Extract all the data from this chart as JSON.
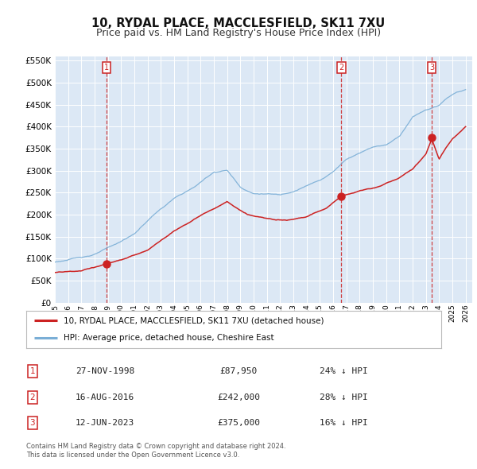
{
  "title": "10, RYDAL PLACE, MACCLESFIELD, SK11 7XU",
  "subtitle": "Price paid vs. HM Land Registry's House Price Index (HPI)",
  "ylim": [
    0,
    560000
  ],
  "xlim_start": 1995.0,
  "xlim_end": 2026.5,
  "yticks": [
    0,
    50000,
    100000,
    150000,
    200000,
    250000,
    300000,
    350000,
    400000,
    450000,
    500000,
    550000
  ],
  "ytick_labels": [
    "£0",
    "£50K",
    "£100K",
    "£150K",
    "£200K",
    "£250K",
    "£300K",
    "£350K",
    "£400K",
    "£450K",
    "£500K",
    "£550K"
  ],
  "xticks": [
    1995,
    1996,
    1997,
    1998,
    1999,
    2000,
    2001,
    2002,
    2003,
    2004,
    2005,
    2006,
    2007,
    2008,
    2009,
    2010,
    2011,
    2012,
    2013,
    2014,
    2015,
    2016,
    2017,
    2018,
    2019,
    2020,
    2021,
    2022,
    2023,
    2024,
    2025,
    2026
  ],
  "fig_bg_color": "#ffffff",
  "plot_bg_color": "#dce8f5",
  "grid_color": "#ffffff",
  "hpi_color": "#7aaed6",
  "price_color": "#cc2222",
  "marker_color": "#cc2222",
  "vline_color": "#cc2222",
  "sale_dates": [
    1998.9,
    2016.62,
    2023.45
  ],
  "sale_prices": [
    87950,
    242000,
    375000
  ],
  "sale_labels": [
    "1",
    "2",
    "3"
  ],
  "legend_price_label": "10, RYDAL PLACE, MACCLESFIELD, SK11 7XU (detached house)",
  "legend_hpi_label": "HPI: Average price, detached house, Cheshire East",
  "table_data": [
    [
      "1",
      "27-NOV-1998",
      "£87,950",
      "24% ↓ HPI"
    ],
    [
      "2",
      "16-AUG-2016",
      "£242,000",
      "28% ↓ HPI"
    ],
    [
      "3",
      "12-JUN-2023",
      "£375,000",
      "16% ↓ HPI"
    ]
  ],
  "footer_line1": "Contains HM Land Registry data © Crown copyright and database right 2024.",
  "footer_line2": "This data is licensed under the Open Government Licence v3.0.",
  "title_fontsize": 10.5,
  "subtitle_fontsize": 9.0,
  "hpi_anchors_x": [
    1995.0,
    1996.5,
    1998.0,
    1999.5,
    2001.0,
    2002.5,
    2004.0,
    2005.5,
    2007.0,
    2008.0,
    2009.0,
    2010.0,
    2011.0,
    2012.0,
    2013.0,
    2014.0,
    2015.0,
    2016.0,
    2017.0,
    2018.0,
    2019.0,
    2020.0,
    2021.0,
    2022.0,
    2023.0,
    2024.0,
    2025.0,
    2026.0
  ],
  "hpi_anchors_y": [
    92000,
    100000,
    110000,
    130000,
    155000,
    200000,
    235000,
    260000,
    295000,
    300000,
    262000,
    248000,
    248000,
    245000,
    255000,
    268000,
    280000,
    300000,
    330000,
    345000,
    360000,
    365000,
    385000,
    430000,
    445000,
    455000,
    480000,
    490000
  ],
  "prop_anchors_x": [
    1995.0,
    1997.0,
    1998.0,
    1998.9,
    2000.0,
    2002.0,
    2004.0,
    2006.0,
    2008.0,
    2009.5,
    2011.0,
    2012.5,
    2014.0,
    2015.5,
    2016.62,
    2018.0,
    2019.5,
    2021.0,
    2022.0,
    2023.0,
    2023.45,
    2024.0,
    2024.5,
    2025.0,
    2026.0
  ],
  "prop_anchors_y": [
    68000,
    72000,
    80000,
    87950,
    95000,
    115000,
    160000,
    195000,
    225000,
    195000,
    185000,
    185000,
    195000,
    215000,
    242000,
    255000,
    265000,
    285000,
    305000,
    340000,
    375000,
    330000,
    355000,
    375000,
    405000
  ]
}
